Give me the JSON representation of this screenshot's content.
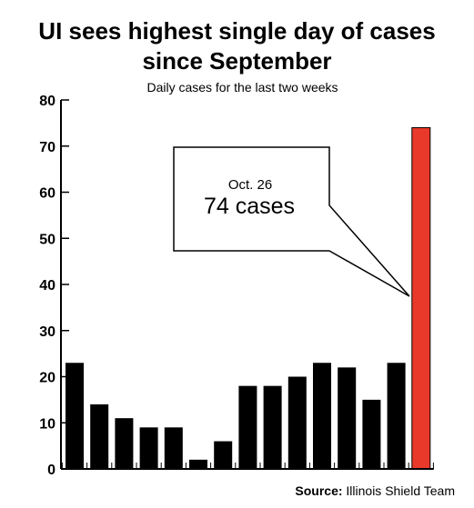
{
  "chart_data": {
    "type": "bar",
    "title_line1": "UI sees highest single day of cases",
    "title_line2": "since September",
    "subtitle": "Daily cases for the last two weeks",
    "xlabel": "",
    "ylabel": "",
    "ylim": [
      0,
      80
    ],
    "yticks": [
      "0",
      "10",
      "20",
      "30",
      "40",
      "50",
      "60",
      "70",
      "80"
    ],
    "values": [
      23,
      14,
      11,
      9,
      9,
      2,
      6,
      18,
      18,
      20,
      23,
      22,
      15,
      23,
      74
    ],
    "highlight_index": 14,
    "colors": {
      "bar": "#000000",
      "highlight": "#e8392a"
    },
    "grid": false,
    "annotation": {
      "date": "Oct. 26",
      "value_text": "74 cases"
    }
  },
  "source": {
    "label": "Source:",
    "text": "Illinois Shield Team"
  }
}
